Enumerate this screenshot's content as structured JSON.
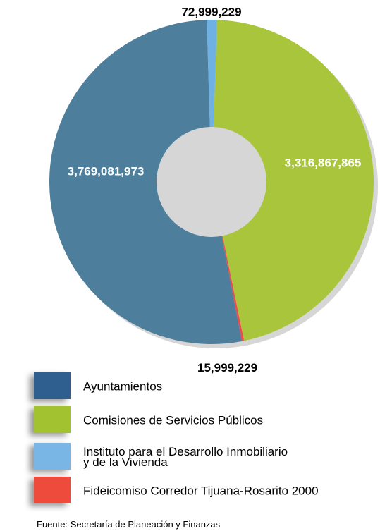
{
  "chart_data": {
    "type": "donut",
    "categories": [
      "Ayuntamientos",
      "Comisiones de Servicios Públicos",
      "Instituto  para el Desarrollo Inmobiliario\ny de la Vivienda",
      "Fideicomiso Corredor Tijuana-Rosarito 2000"
    ],
    "values": [
      3769081973,
      3316867865,
      72999229,
      15999229
    ],
    "value_labels": [
      "3,769,081,973",
      "3,316,867,865",
      "72,999,229",
      "15,999,229"
    ],
    "colors": [
      "#4d7f9c",
      "#a9c53c",
      "#6fb1e2",
      "#ef4b4c"
    ],
    "legend_colors": [
      "#2f5f8f",
      "#a2c22f",
      "#79b6e6",
      "#ef4b3c"
    ],
    "source": "Fuente:  Secretaría de Planeación y Finanzas"
  }
}
